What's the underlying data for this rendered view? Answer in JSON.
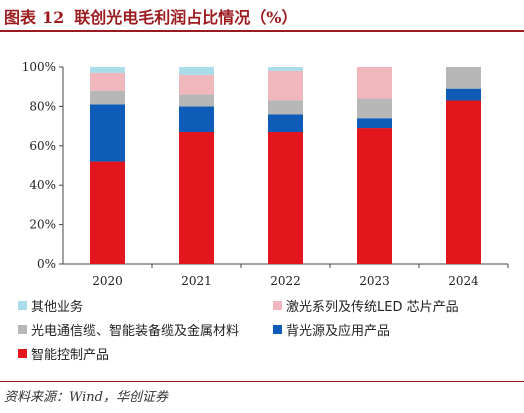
{
  "header": {
    "prefix": "图表",
    "number": "12",
    "text": "联创光电毛利润占比情况（%）"
  },
  "source": "资料来源：Wind，华创证券",
  "chart_data": {
    "type": "bar",
    "stacked": true,
    "categories": [
      "2020",
      "2021",
      "2022",
      "2023",
      "2024"
    ],
    "yticks": [
      "0%",
      "20%",
      "40%",
      "60%",
      "80%",
      "100%"
    ],
    "ylim": [
      0,
      100
    ],
    "legend_position": "bottom",
    "series": [
      {
        "name": "智能控制产品",
        "color": "#e3161e",
        "values": [
          52,
          67,
          67,
          69,
          83
        ]
      },
      {
        "name": "背光源及应用产品",
        "color": "#0e5cb8",
        "values": [
          29,
          13,
          9,
          5,
          6
        ]
      },
      {
        "name": "光电通信缆、智能装备缆及金属材料",
        "color": "#b7b7b7",
        "values": [
          7,
          6,
          7,
          10,
          11
        ]
      },
      {
        "name": "激光系列及传统LED 芯片产品",
        "color": "#f0b8bc",
        "values": [
          9,
          10,
          15,
          16,
          0
        ]
      },
      {
        "name": "其他业务",
        "color": "#a9dbe8",
        "values": [
          3,
          4,
          2,
          0,
          0
        ]
      }
    ]
  }
}
